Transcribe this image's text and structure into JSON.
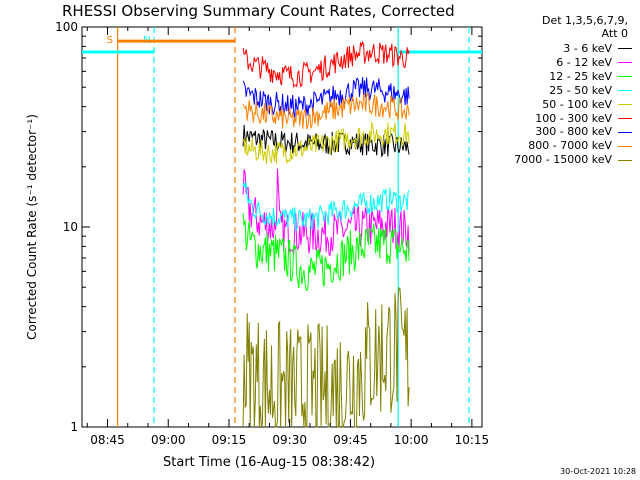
{
  "chart_data": {
    "type": "line",
    "title": "RHESSI Observing Summary Count Rates, Corrected",
    "xlabel": "Start Time (16-Aug-15 08:38:42)",
    "ylabel": "Corrected Count Rate (s⁻¹ detector⁻¹)",
    "yscale": "log",
    "ylim": [
      1,
      100
    ],
    "xlim_minutes": [
      38.7,
      137.5
    ],
    "x_ticks": [
      {
        "m": 45,
        "label": "08:45"
      },
      {
        "m": 60,
        "label": "09:00"
      },
      {
        "m": 75,
        "label": "09:15"
      },
      {
        "m": 90,
        "label": "09:30"
      },
      {
        "m": 105,
        "label": "09:45"
      },
      {
        "m": 120,
        "label": "10:00"
      },
      {
        "m": 135,
        "label": "10:15"
      }
    ],
    "y_ticks": [
      {
        "v": 1,
        "label": "1"
      },
      {
        "v": 10,
        "label": "10"
      },
      {
        "v": 100,
        "label": "100"
      }
    ],
    "legend_header": [
      "Det 1,3,5,6,7,9,",
      "Att 0"
    ],
    "legend_position": "top-right",
    "series": [
      {
        "name": "3 - 6 keV",
        "color": "#000000",
        "x": [
          78.5,
          80,
          85,
          90,
          95,
          100,
          105,
          110,
          115,
          119.5
        ],
        "values": [
          29,
          28,
          27,
          26.5,
          26,
          26,
          26.5,
          26,
          25.5,
          25
        ]
      },
      {
        "name": "6 - 12 keV",
        "color": "#ff00ff",
        "x": [
          78.5,
          79.5,
          81,
          83,
          85,
          86.5,
          87,
          87.5,
          88,
          90,
          95,
          100,
          105,
          110,
          115,
          119.5
        ],
        "values": [
          16,
          13,
          11.5,
          10.5,
          10.2,
          10,
          17,
          9.8,
          9.6,
          9.4,
          9.2,
          9.3,
          9.8,
          10,
          10.2,
          9.5
        ]
      },
      {
        "name": "12 - 25 keV",
        "color": "#00ff00",
        "x": [
          78.5,
          80,
          82,
          85,
          88,
          90,
          92,
          95,
          98,
          100,
          105,
          110,
          115,
          119.5
        ],
        "values": [
          10,
          8.5,
          7.8,
          7.5,
          7.2,
          6.8,
          6.3,
          6,
          6.2,
          6.5,
          7.5,
          8.2,
          8.3,
          7.5
        ]
      },
      {
        "name": "25 - 50 keV",
        "color": "#00ffff",
        "x": [
          78.5,
          79.5,
          81,
          83,
          85,
          88,
          90,
          93,
          95,
          98,
          100,
          103,
          105,
          108,
          110,
          113,
          115,
          117,
          119.5
        ],
        "values": [
          17,
          14,
          12.5,
          11.8,
          11.4,
          11.2,
          11,
          10.8,
          10.9,
          11.3,
          11.8,
          12.2,
          12.6,
          13,
          13.2,
          13.6,
          13.8,
          13.5,
          13.3
        ]
      },
      {
        "name": "50 - 100 keV",
        "color": "#cccc00",
        "x": [
          78.5,
          80,
          85,
          90,
          95,
          100,
          105,
          110,
          115,
          119.5
        ],
        "values": [
          26,
          24.5,
          23.5,
          24,
          25,
          26.5,
          28,
          29,
          29.5,
          29
        ]
      },
      {
        "name": "100 - 300 keV",
        "color": "#ff0000",
        "x": [
          78.5,
          80,
          82,
          85,
          88,
          90,
          92,
          95,
          98,
          100,
          103,
          105,
          108,
          110,
          113,
          115,
          117,
          119.5
        ],
        "values": [
          70,
          67,
          64,
          61,
          58.5,
          57,
          57.5,
          59,
          62,
          65,
          69,
          72,
          74,
          75,
          74,
          73,
          71,
          70
        ]
      },
      {
        "name": "300 - 800 keV",
        "color": "#0000ff",
        "x": [
          78.5,
          80,
          82,
          85,
          88,
          90,
          92,
          95,
          98,
          100,
          103,
          105,
          108,
          110,
          113,
          115,
          117,
          119.5
        ],
        "values": [
          48,
          46,
          44,
          42,
          41,
          40,
          40,
          41,
          43,
          44.5,
          46.5,
          48,
          49,
          49,
          48,
          47,
          46,
          45
        ]
      },
      {
        "name": "800 - 7000 keV",
        "color": "#ff8000",
        "x": [
          78.5,
          80,
          82,
          85,
          88,
          90,
          92,
          95,
          98,
          100,
          103,
          105,
          108,
          110,
          113,
          115,
          117,
          119.5
        ],
        "values": [
          40,
          38.5,
          37,
          36,
          35,
          34.5,
          34.5,
          35.5,
          37,
          38,
          39.5,
          40.5,
          41,
          41,
          40.5,
          40,
          38.5,
          37
        ]
      },
      {
        "name": "7000 - 15000 keV",
        "color": "#808000",
        "x": [
          78.5,
          80,
          85,
          90,
          95,
          100,
          105,
          110,
          115,
          119.5
        ],
        "values": [
          2,
          1.8,
          1.6,
          1.5,
          1.5,
          1.5,
          1.7,
          2.2,
          2.5,
          2.2
        ]
      }
    ],
    "annotations": [
      {
        "type": "vline",
        "x": 47.5,
        "style": "solid",
        "color": "#ff8000",
        "label": "S"
      },
      {
        "type": "vline",
        "x": 56.5,
        "style": "dashed",
        "color": "#00ffff",
        "label": "N"
      },
      {
        "type": "vline",
        "x": 76.5,
        "style": "dashed",
        "color": "#ff8000"
      },
      {
        "type": "vline",
        "x": 116.8,
        "style": "solid",
        "color": "#00ffff"
      },
      {
        "type": "vline",
        "x": 134.3,
        "style": "dashed",
        "color": "#00ffff"
      },
      {
        "type": "segment",
        "x0": 47.5,
        "x1": 76.5,
        "y": 85,
        "color": "#ff8000"
      },
      {
        "type": "segment",
        "x0": 38.7,
        "x1": 56.5,
        "y": 75,
        "color": "#00ffff"
      },
      {
        "type": "segment",
        "x0": 116.8,
        "x1": 137.5,
        "y": 75,
        "color": "#00ffff"
      }
    ]
  },
  "timestamp": "30-Oct-2021 10:28"
}
